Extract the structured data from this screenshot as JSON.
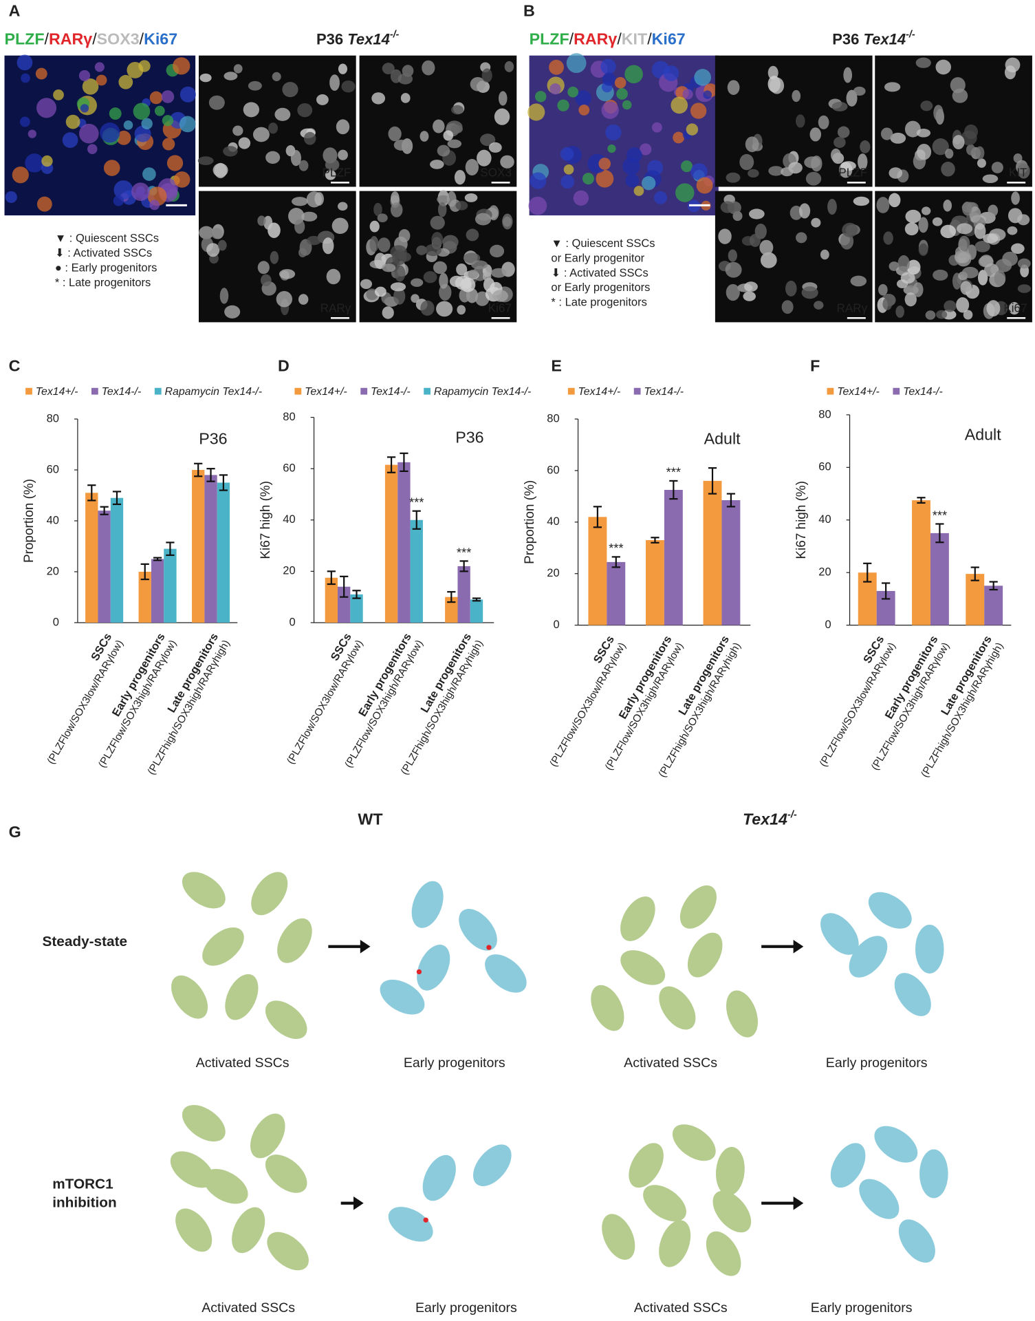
{
  "panels": {
    "A": {
      "letter": "A",
      "channels": [
        {
          "text": "PLZF",
          "color": "#2fae4a"
        },
        {
          "text": "RARγ",
          "color": "#e0262a"
        },
        {
          "text": "SOX3",
          "color": "#bbbbbb"
        },
        {
          "text": "Ki67",
          "color": "#2a6fc9"
        }
      ],
      "separator": "/",
      "title": {
        "stage": "P36",
        "gene": "Tex14",
        "genotype": "-/-"
      },
      "image_labels": [
        {
          "text": "PLZF",
          "color": "#2fae4a"
        },
        {
          "text": "SOX3",
          "color": "#ffffff"
        },
        {
          "text": "RARγ",
          "color": "#e0262a"
        },
        {
          "text": "Ki67",
          "color": "#2a6fc9"
        }
      ],
      "legend": [
        "▼ : Quiescent SSCs",
        "⬇ : Activated SSCs",
        "● : Early progenitors",
        "* : Late progenitors"
      ]
    },
    "B": {
      "letter": "B",
      "channels": [
        {
          "text": "PLZF",
          "color": "#2fae4a"
        },
        {
          "text": "RARγ",
          "color": "#e0262a"
        },
        {
          "text": "KIT",
          "color": "#bbbbbb"
        },
        {
          "text": "Ki67",
          "color": "#2a6fc9"
        }
      ],
      "separator": "/",
      "title": {
        "stage": "P36",
        "gene": "Tex14",
        "genotype": "-/-"
      },
      "image_labels": [
        {
          "text": "PLZF",
          "color": "#2fae4a"
        },
        {
          "text": "KIT",
          "color": "#ffffff"
        },
        {
          "text": "RARγ",
          "color": "#e0262a"
        },
        {
          "text": "Ki67",
          "color": "#2a6fc9"
        }
      ],
      "legend": [
        "▼ : Quiescent SSCs",
        "or Early progenitor",
        "⬇ : Activated SSCs",
        "or Early progenitors",
        "* : Late progenitors"
      ]
    },
    "G": {
      "letter": "G",
      "columns": [
        {
          "gene": "WT",
          "genotype": ""
        },
        {
          "gene": "Tex14",
          "genotype": "-/-"
        }
      ],
      "rows": [
        [
          "Steady-state"
        ],
        [
          "mTORC1",
          "inhibition"
        ]
      ],
      "cell_labels": [
        [
          "Activated SSCs",
          "Early progenitors",
          "Activated SSCs",
          "Early progenitors"
        ],
        [
          "Activated SSCs",
          "Early progenitors",
          "Activated SSCs",
          "Early progenitors"
        ]
      ]
    }
  },
  "chart_data": [
    {
      "type": "bar",
      "letter": "C",
      "annotation": "P36",
      "y_label": "Proportion (%)",
      "categories": [
        "SSCs",
        "Early progenitors",
        "Late progenitors"
      ],
      "category_details": [
        "(PLZFlow/SOX3low/RARγlow)",
        "(PLZFlow/SOX3high/RARγlow)",
        "(PLZFhigh/SOX3high/RARγhigh)"
      ],
      "series": [
        {
          "name": "Tex14+/-",
          "color": "#f39a3f",
          "values": [
            51,
            20,
            60
          ],
          "errors": [
            3,
            3,
            2.5
          ]
        },
        {
          "name": "Tex14-/-",
          "color": "#8a6bb0",
          "values": [
            44,
            25,
            58
          ],
          "errors": [
            1.5,
            0.5,
            2.5
          ]
        },
        {
          "name": "Rapamycin Tex14-/-",
          "color": "#4bb3c8",
          "values": [
            49,
            29,
            55
          ],
          "errors": [
            2.5,
            2.5,
            3
          ]
        }
      ],
      "ylim": [
        0,
        80
      ],
      "yticks": [
        0,
        20,
        40,
        60,
        80
      ]
    },
    {
      "type": "bar",
      "letter": "D",
      "annotation": "P36",
      "y_label": "Ki67 high  (%)",
      "categories": [
        "SSCs",
        "Early progenitors",
        "Late progenitors"
      ],
      "category_details": [
        "(PLZFlow/SOX3low/RARγlow)",
        "(PLZFlow/SOX3high/RARγlow)",
        "(PLZFhigh/SOX3high/RARγhigh)"
      ],
      "series": [
        {
          "name": "Tex14+/-",
          "color": "#f39a3f",
          "values": [
            17.5,
            61.5,
            10
          ],
          "errors": [
            2.5,
            3,
            2
          ]
        },
        {
          "name": "Tex14-/-",
          "color": "#8a6bb0",
          "values": [
            14,
            62.5,
            22
          ],
          "errors": [
            4,
            3.5,
            2
          ],
          "significance": [
            null,
            null,
            "***"
          ]
        },
        {
          "name": "Rapamycin Tex14-/-",
          "color": "#4bb3c8",
          "values": [
            11,
            40,
            9
          ],
          "errors": [
            1.5,
            3.5,
            0.5
          ],
          "significance": [
            null,
            "***",
            null
          ]
        }
      ],
      "ylim": [
        0,
        80
      ],
      "yticks": [
        0,
        20,
        40,
        60,
        80
      ]
    },
    {
      "type": "bar",
      "letter": "E",
      "annotation": "Adult",
      "y_label": "Proportion (%)",
      "categories": [
        "SSCs",
        "Early progenitors",
        "Late progenitors"
      ],
      "category_details": [
        "(PLZFlow/SOX3low/RARγlow)",
        "(PLZFlow/SOX3high/RARγlow)",
        "(PLZFhigh/SOX3high/RARγhigh)"
      ],
      "series": [
        {
          "name": "Tex14+/-",
          "color": "#f39a3f",
          "values": [
            42,
            33,
            56
          ],
          "errors": [
            4,
            1,
            5
          ]
        },
        {
          "name": "Tex14-/-",
          "color": "#8a6bb0",
          "values": [
            24.5,
            52.5,
            48.5
          ],
          "errors": [
            2,
            3.5,
            2.5
          ],
          "significance": [
            "***",
            "***",
            null
          ]
        }
      ],
      "ylim": [
        0,
        80
      ],
      "yticks": [
        0,
        20,
        40,
        60,
        80
      ]
    },
    {
      "type": "bar",
      "letter": "F",
      "annotation": "Adult",
      "y_label": "Ki67 high  (%)",
      "categories": [
        "SSCs",
        "Early progenitors",
        "Late progenitors"
      ],
      "category_details": [
        "(PLZFlow/SOX3low/RARγlow)",
        "(PLZFlow/SOX3high/RARγlow)",
        "(PLZFhigh/SOX3high/RARγhigh)"
      ],
      "series": [
        {
          "name": "Tex14+/-",
          "color": "#f39a3f",
          "values": [
            20,
            47.5,
            19.5
          ],
          "errors": [
            3.5,
            1,
            2.5
          ]
        },
        {
          "name": "Tex14-/-",
          "color": "#8a6bb0",
          "values": [
            13,
            35,
            15
          ],
          "errors": [
            3,
            3.5,
            1.5
          ],
          "significance": [
            null,
            "***",
            null
          ]
        }
      ],
      "ylim": [
        0,
        80
      ],
      "yticks": [
        0,
        20,
        40,
        60,
        80
      ]
    }
  ]
}
